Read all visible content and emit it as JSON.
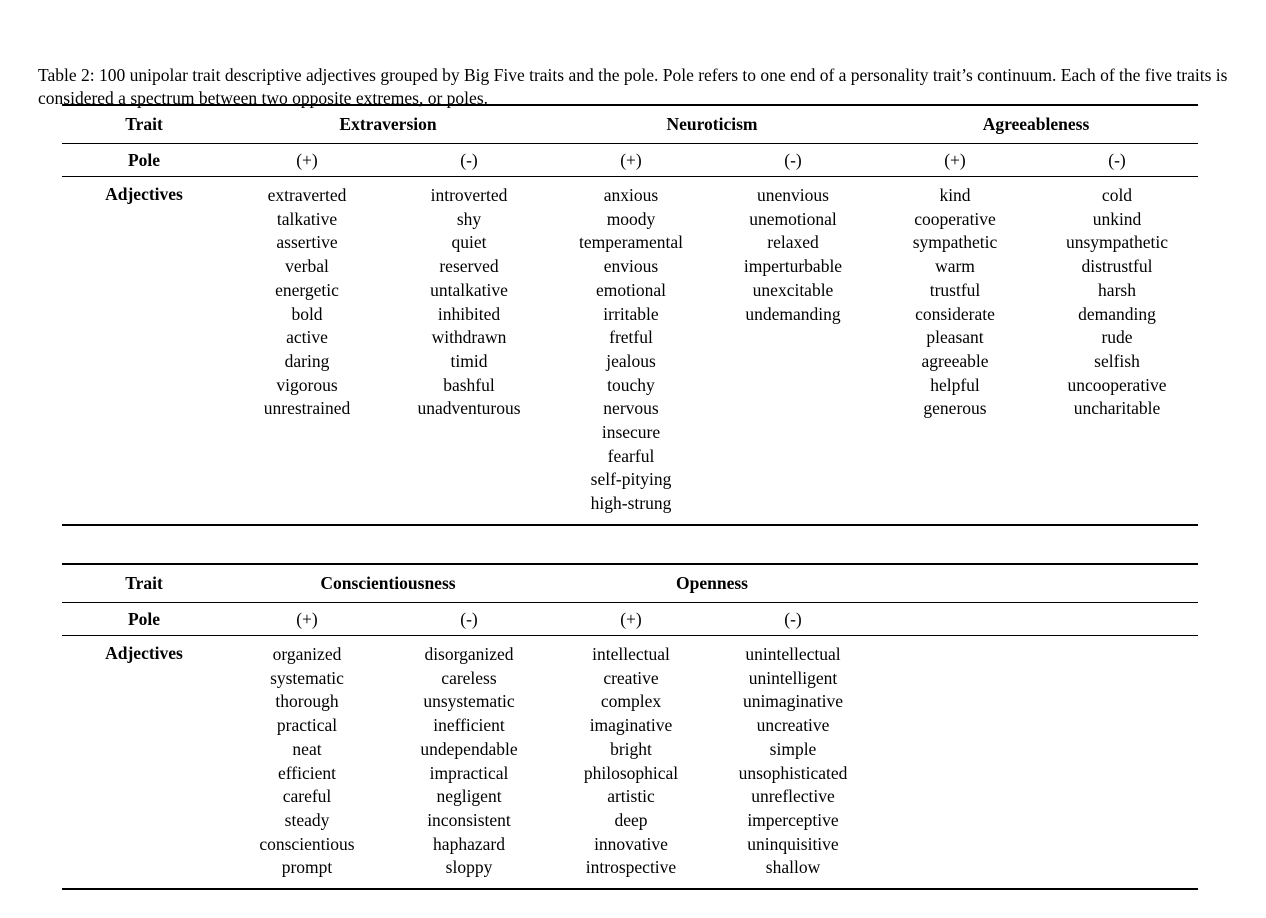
{
  "caption": "Table 2: 100 unipolar trait descriptive adjectives grouped by Big Five traits and the pole. Pole refers to one end of a personality trait’s continuum. Each of the five traits is considered a spectrum between two opposite extremes, or poles.",
  "labels": {
    "trait": "Trait",
    "pole": "Pole",
    "adjectives": "Adjectives",
    "pole_plus": "(+)",
    "pole_minus": "(-)"
  },
  "tables": [
    {
      "traits": [
        {
          "name": "Extraversion",
          "pos": [
            "extraverted",
            "talkative",
            "assertive",
            "verbal",
            "energetic",
            "bold",
            "active",
            "daring",
            "vigorous",
            "unrestrained"
          ],
          "neg": [
            "introverted",
            "shy",
            "quiet",
            "reserved",
            "untalkative",
            "inhibited",
            "withdrawn",
            "timid",
            "bashful",
            "unadventurous"
          ]
        },
        {
          "name": "Neuroticism",
          "pos": [
            "anxious",
            "moody",
            "temperamental",
            "envious",
            "emotional",
            "irritable",
            "fretful",
            "jealous",
            "touchy",
            "nervous",
            "insecure",
            "fearful",
            "self-pitying",
            "high-strung"
          ],
          "neg": [
            "unenvious",
            "unemotional",
            "relaxed",
            "imperturbable",
            "unexcitable",
            "undemanding"
          ]
        },
        {
          "name": "Agreeableness",
          "pos": [
            "kind",
            "cooperative",
            "sympathetic",
            "warm",
            "trustful",
            "considerate",
            "pleasant",
            "agreeable",
            "helpful",
            "generous"
          ],
          "neg": [
            "cold",
            "unkind",
            "unsympathetic",
            "distrustful",
            "harsh",
            "demanding",
            "rude",
            "selfish",
            "uncooperative",
            "uncharitable"
          ]
        }
      ]
    },
    {
      "traits": [
        {
          "name": "Conscientiousness",
          "pos": [
            "organized",
            "systematic",
            "thorough",
            "practical",
            "neat",
            "efficient",
            "careful",
            "steady",
            "conscientious",
            "prompt"
          ],
          "neg": [
            "disorganized",
            "careless",
            "unsystematic",
            "inefficient",
            "undependable",
            "impractical",
            "negligent",
            "inconsistent",
            "haphazard",
            "sloppy"
          ]
        },
        {
          "name": "Openness",
          "pos": [
            "intellectual",
            "creative",
            "complex",
            "imaginative",
            "bright",
            "philosophical",
            "artistic",
            "deep",
            "innovative",
            "introspective"
          ],
          "neg": [
            "unintellectual",
            "unintelligent",
            "unimaginative",
            "uncreative",
            "simple",
            "unsophisticated",
            "unreflective",
            "imperceptive",
            "uninquisitive",
            "shallow"
          ]
        }
      ]
    }
  ]
}
